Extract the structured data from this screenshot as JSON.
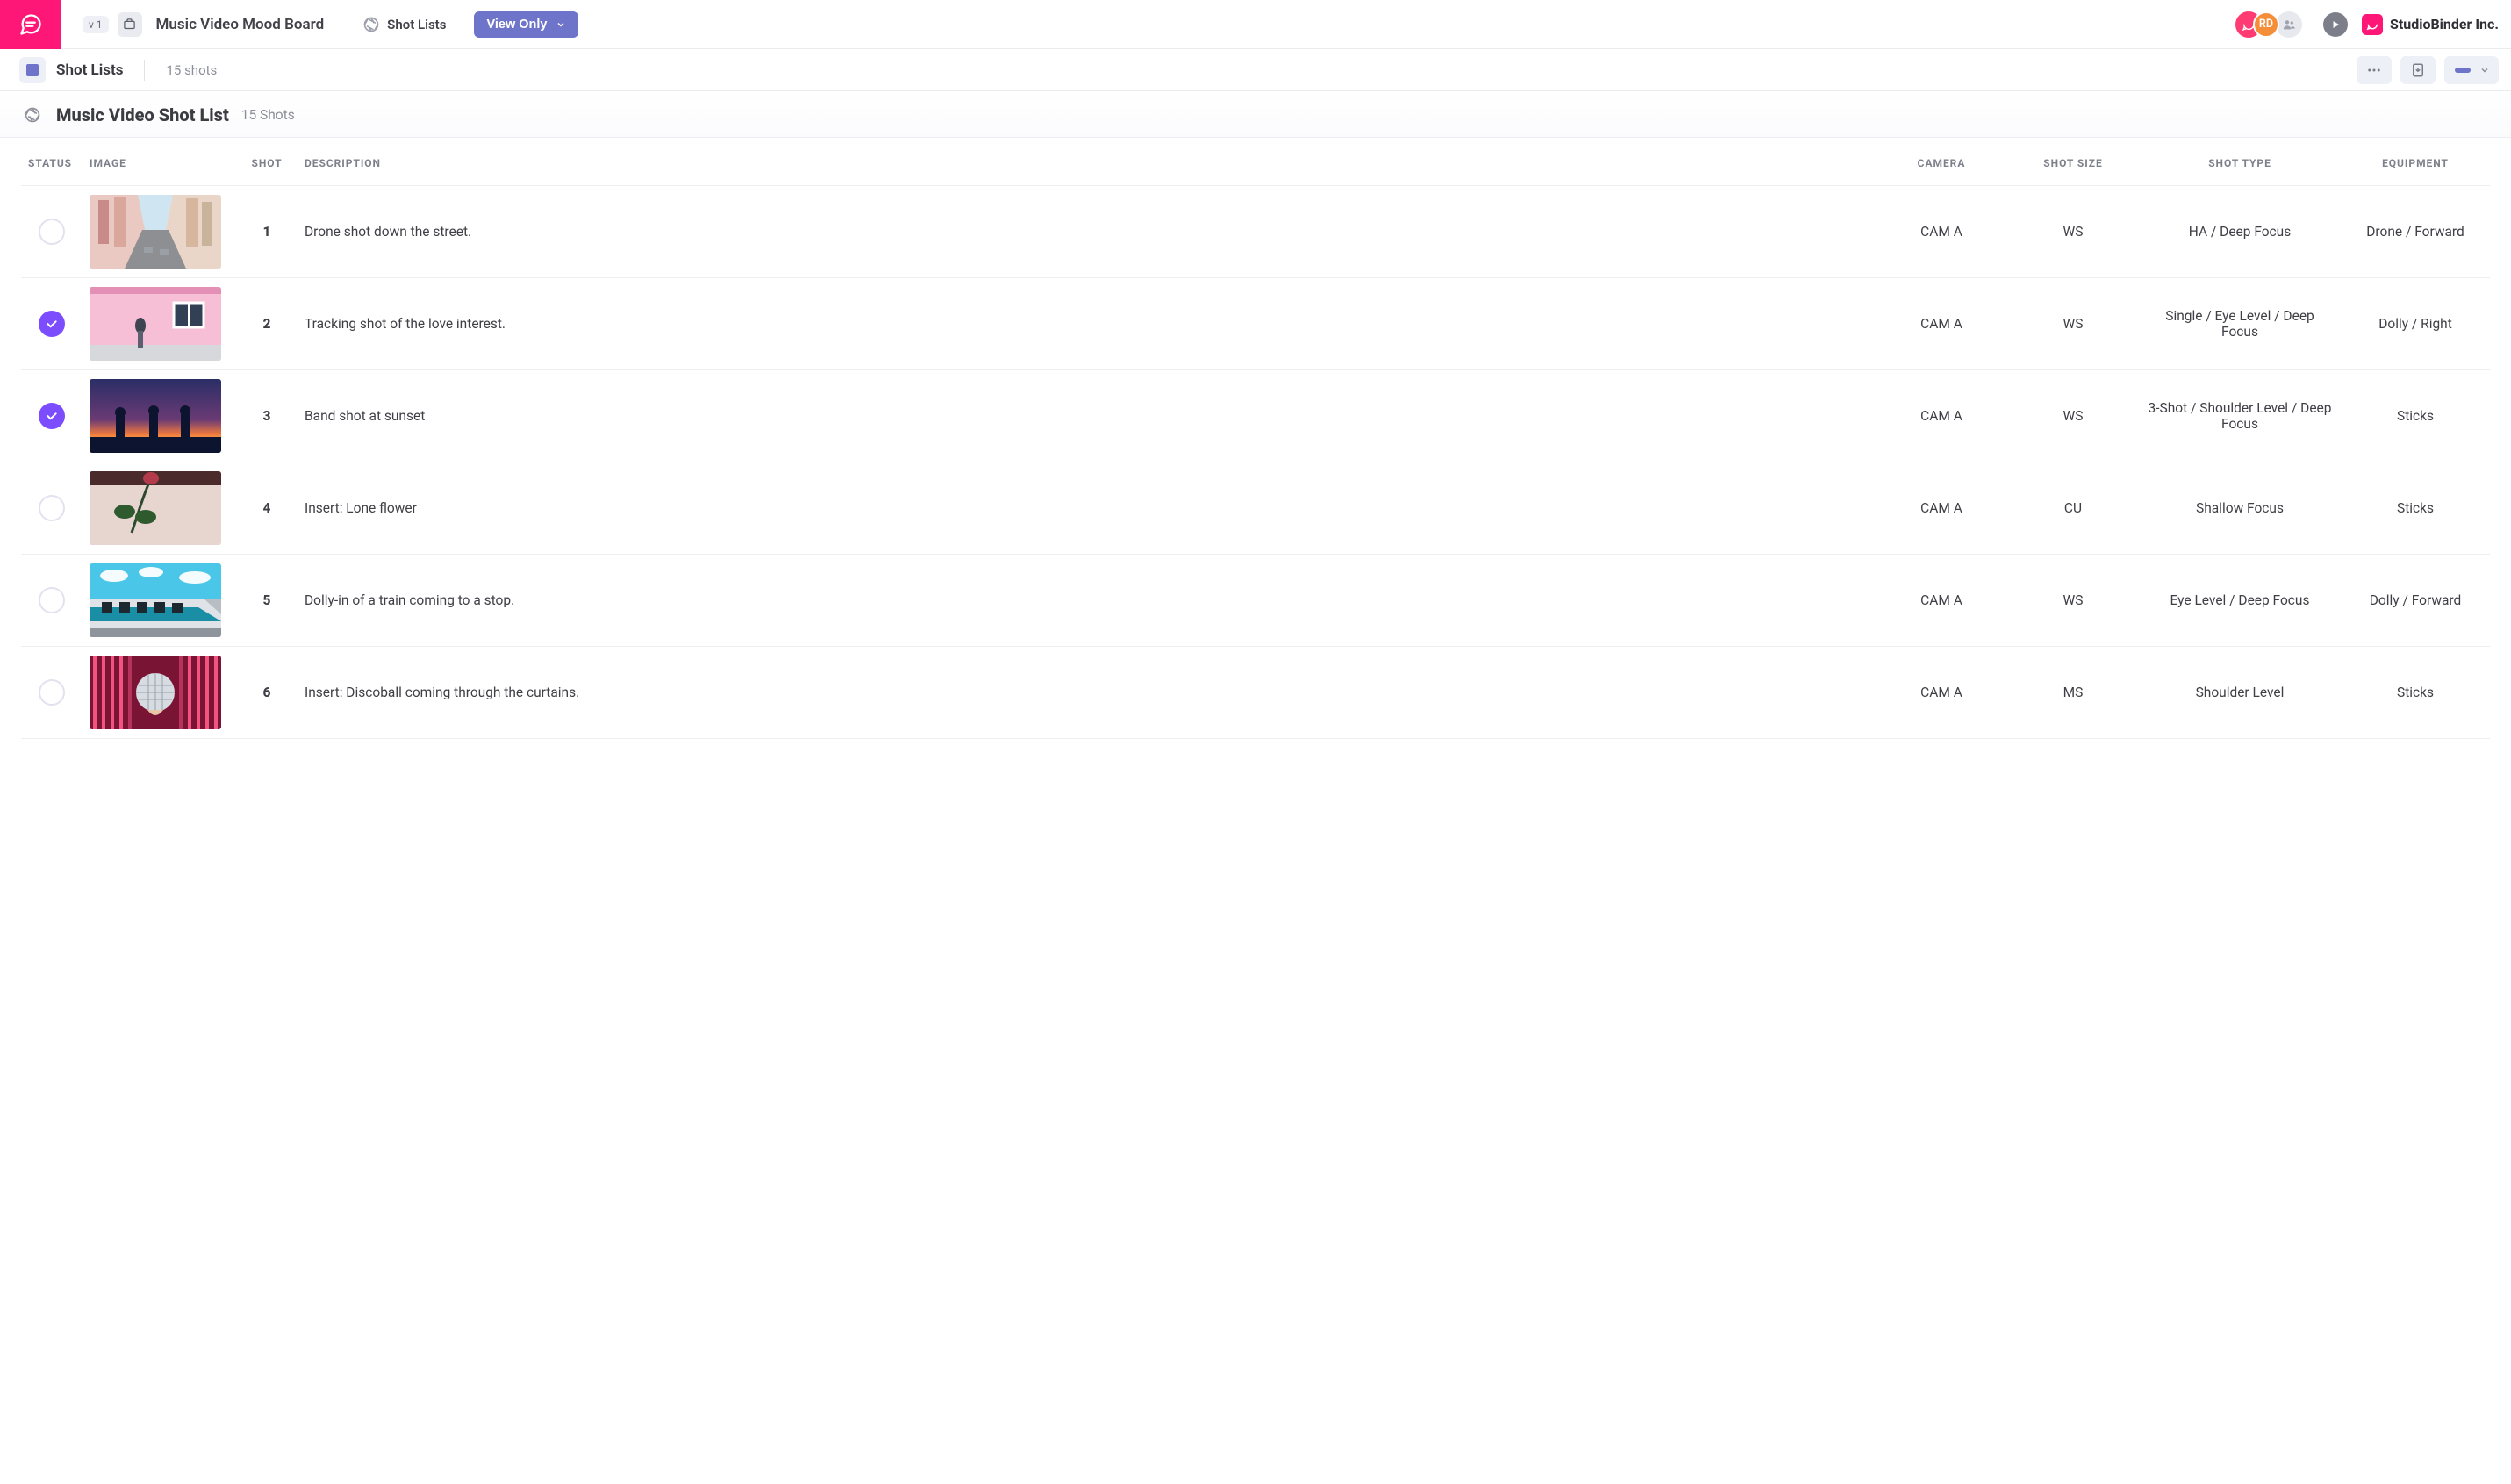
{
  "colors": {
    "brand_pink": "#ff1778",
    "accent_purple": "#6e74c9",
    "check_purple": "#7c4dff",
    "text_muted": "#8c8e98",
    "border": "#eceef2"
  },
  "header": {
    "version_badge": "v 1",
    "project_title": "Music Video Mood Board",
    "nav_shot_lists": "Shot Lists",
    "view_only_label": "View Only",
    "avatar_initials": "RD",
    "brand_name": "StudioBinder Inc."
  },
  "subheader": {
    "title": "Shot Lists",
    "count": "15 shots"
  },
  "section": {
    "title": "Music Video Shot List",
    "count_label": "15 Shots"
  },
  "table": {
    "columns": {
      "status": "STATUS",
      "image": "IMAGE",
      "shot": "SHOT",
      "description": "DESCRIPTION",
      "camera": "CAMERA",
      "shot_size": "SHOT SIZE",
      "shot_type": "SHOT TYPE",
      "equipment": "EQUIPMENT"
    },
    "rows": [
      {
        "checked": false,
        "shot": "1",
        "description": "Drone shot down the street.",
        "camera": "CAM A",
        "shot_size": "WS",
        "shot_type": "HA / Deep Focus",
        "equipment": "Drone / Forward",
        "thumb": "street"
      },
      {
        "checked": true,
        "shot": "2",
        "description": "Tracking shot of the love interest.",
        "camera": "CAM A",
        "shot_size": "WS",
        "shot_type": "Single / Eye Level / Deep Focus",
        "equipment": "Dolly / Right",
        "thumb": "pinkwall"
      },
      {
        "checked": true,
        "shot": "3",
        "description": "Band shot at sunset",
        "camera": "CAM A",
        "shot_size": "WS",
        "shot_type": "3-Shot / Shoulder Level / Deep Focus",
        "equipment": "Sticks",
        "thumb": "sunset"
      },
      {
        "checked": false,
        "shot": "4",
        "description": "Insert: Lone flower",
        "camera": "CAM A",
        "shot_size": "CU",
        "shot_type": "Shallow Focus",
        "equipment": "Sticks",
        "thumb": "flower"
      },
      {
        "checked": false,
        "shot": "5",
        "description": "Dolly-in of a train coming to a stop.",
        "camera": "CAM A",
        "shot_size": "WS",
        "shot_type": "Eye Level / Deep Focus",
        "equipment": "Dolly / Forward",
        "thumb": "train"
      },
      {
        "checked": false,
        "shot": "6",
        "description": "Insert: Discoball coming through the curtains.",
        "camera": "CAM A",
        "shot_size": "MS",
        "shot_type": "Shoulder Level",
        "equipment": "Sticks",
        "thumb": "disco"
      }
    ]
  }
}
